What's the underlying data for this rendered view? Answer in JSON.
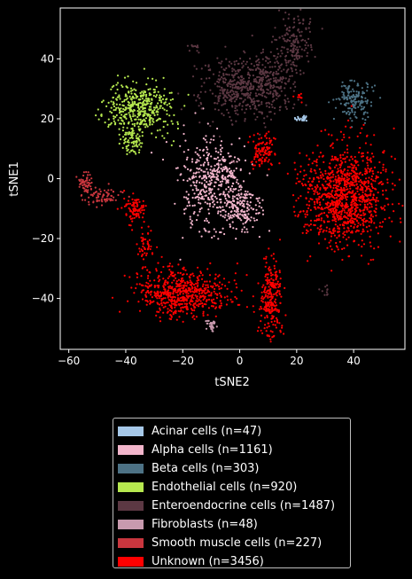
{
  "chart_data": {
    "type": "scatter",
    "title": "",
    "xlabel": "tSNE2",
    "ylabel": "tSNE1",
    "xlim": [
      -63,
      58
    ],
    "ylim": [
      -57,
      57
    ],
    "xticks": [
      -60,
      -40,
      -20,
      0,
      20,
      40
    ],
    "yticks": [
      -40,
      -20,
      0,
      20,
      40
    ],
    "xtick_labels": [
      "−60",
      "−40",
      "−20",
      "0",
      "20",
      "40"
    ],
    "ytick_labels": [
      "−40",
      "−20",
      "0",
      "20",
      "40"
    ],
    "grid": false,
    "legend_position": "below",
    "series": [
      {
        "name": "Acinar cells (n=47)",
        "color": "#a6c8e8",
        "n": 47,
        "clusters": [
          {
            "center": [
              22,
              20
            ],
            "spread": [
              1.2,
              0.7
            ],
            "count": 25
          }
        ]
      },
      {
        "name": "Alpha cells (n=1161)",
        "color": "#f2b5cb",
        "n": 1161,
        "clusters": [
          {
            "center": [
              -11,
              -3
            ],
            "spread": [
              5,
              8
            ],
            "count": 360
          },
          {
            "center": [
              1,
              -10
            ],
            "spread": [
              3.5,
              4
            ],
            "count": 170
          },
          {
            "center": [
              -5,
              2
            ],
            "spread": [
              3,
              3
            ],
            "count": 90
          }
        ]
      },
      {
        "name": "Beta cells (n=303)",
        "color": "#4d7285",
        "n": 303,
        "clusters": [
          {
            "center": [
              40,
              26
            ],
            "spread": [
              3,
              3
            ],
            "count": 160
          }
        ]
      },
      {
        "name": "Endothelial cells (n=920)",
        "color": "#b6e84f",
        "n": 920,
        "clusters": [
          {
            "center": [
              -35,
              24
            ],
            "spread": [
              5.5,
              4.5
            ],
            "count": 420
          },
          {
            "center": [
              -38,
              13
            ],
            "spread": [
              1.8,
              2.2
            ],
            "count": 80
          }
        ]
      },
      {
        "name": "Enteroendocrine cells (n=1487)",
        "color": "#5c3843",
        "n": 1487,
        "clusters": [
          {
            "center": [
              0,
              30
            ],
            "spread": [
              7,
              6
            ],
            "count": 420
          },
          {
            "center": [
              11,
              33
            ],
            "spread": [
              4,
              4
            ],
            "count": 180
          },
          {
            "center": [
              19,
              45
            ],
            "spread": [
              3,
              5
            ],
            "count": 170
          },
          {
            "center": [
              -16,
              44
            ],
            "spread": [
              1,
              1
            ],
            "count": 12
          },
          {
            "center": [
              30,
              -37
            ],
            "spread": [
              1,
              1
            ],
            "count": 10
          }
        ]
      },
      {
        "name": "Fibroblasts (n=48)",
        "color": "#c89aae",
        "n": 48,
        "clusters": [
          {
            "center": [
              -10,
              -49
            ],
            "spread": [
              1,
              1
            ],
            "count": 30
          }
        ]
      },
      {
        "name": "Smooth muscle cells (n=227)",
        "color": "#c9363e",
        "n": 227,
        "clusters": [
          {
            "center": [
              -54,
              -2
            ],
            "spread": [
              1.5,
              2
            ],
            "count": 60
          },
          {
            "center": [
              -48,
              -6
            ],
            "spread": [
              3,
              1.5
            ],
            "count": 70
          }
        ]
      },
      {
        "name": "Unknown (n=3456)",
        "color": "#ff0000",
        "n": 3456,
        "clusters": [
          {
            "center": [
              37,
              -6
            ],
            "spread": [
              7.5,
              8
            ],
            "count": 1100
          },
          {
            "center": [
              -20,
              -38
            ],
            "spread": [
              8,
              4
            ],
            "count": 620
          },
          {
            "center": [
              11,
              -40
            ],
            "spread": [
              2,
              7
            ],
            "count": 260
          },
          {
            "center": [
              8,
              9
            ],
            "spread": [
              2,
              3
            ],
            "count": 110
          },
          {
            "center": [
              -37,
              -10
            ],
            "spread": [
              2,
              2
            ],
            "count": 90
          },
          {
            "center": [
              -33,
              -22
            ],
            "spread": [
              1.5,
              2.5
            ],
            "count": 50
          },
          {
            "center": [
              21,
              27
            ],
            "spread": [
              1,
              1
            ],
            "count": 10
          }
        ]
      }
    ]
  }
}
